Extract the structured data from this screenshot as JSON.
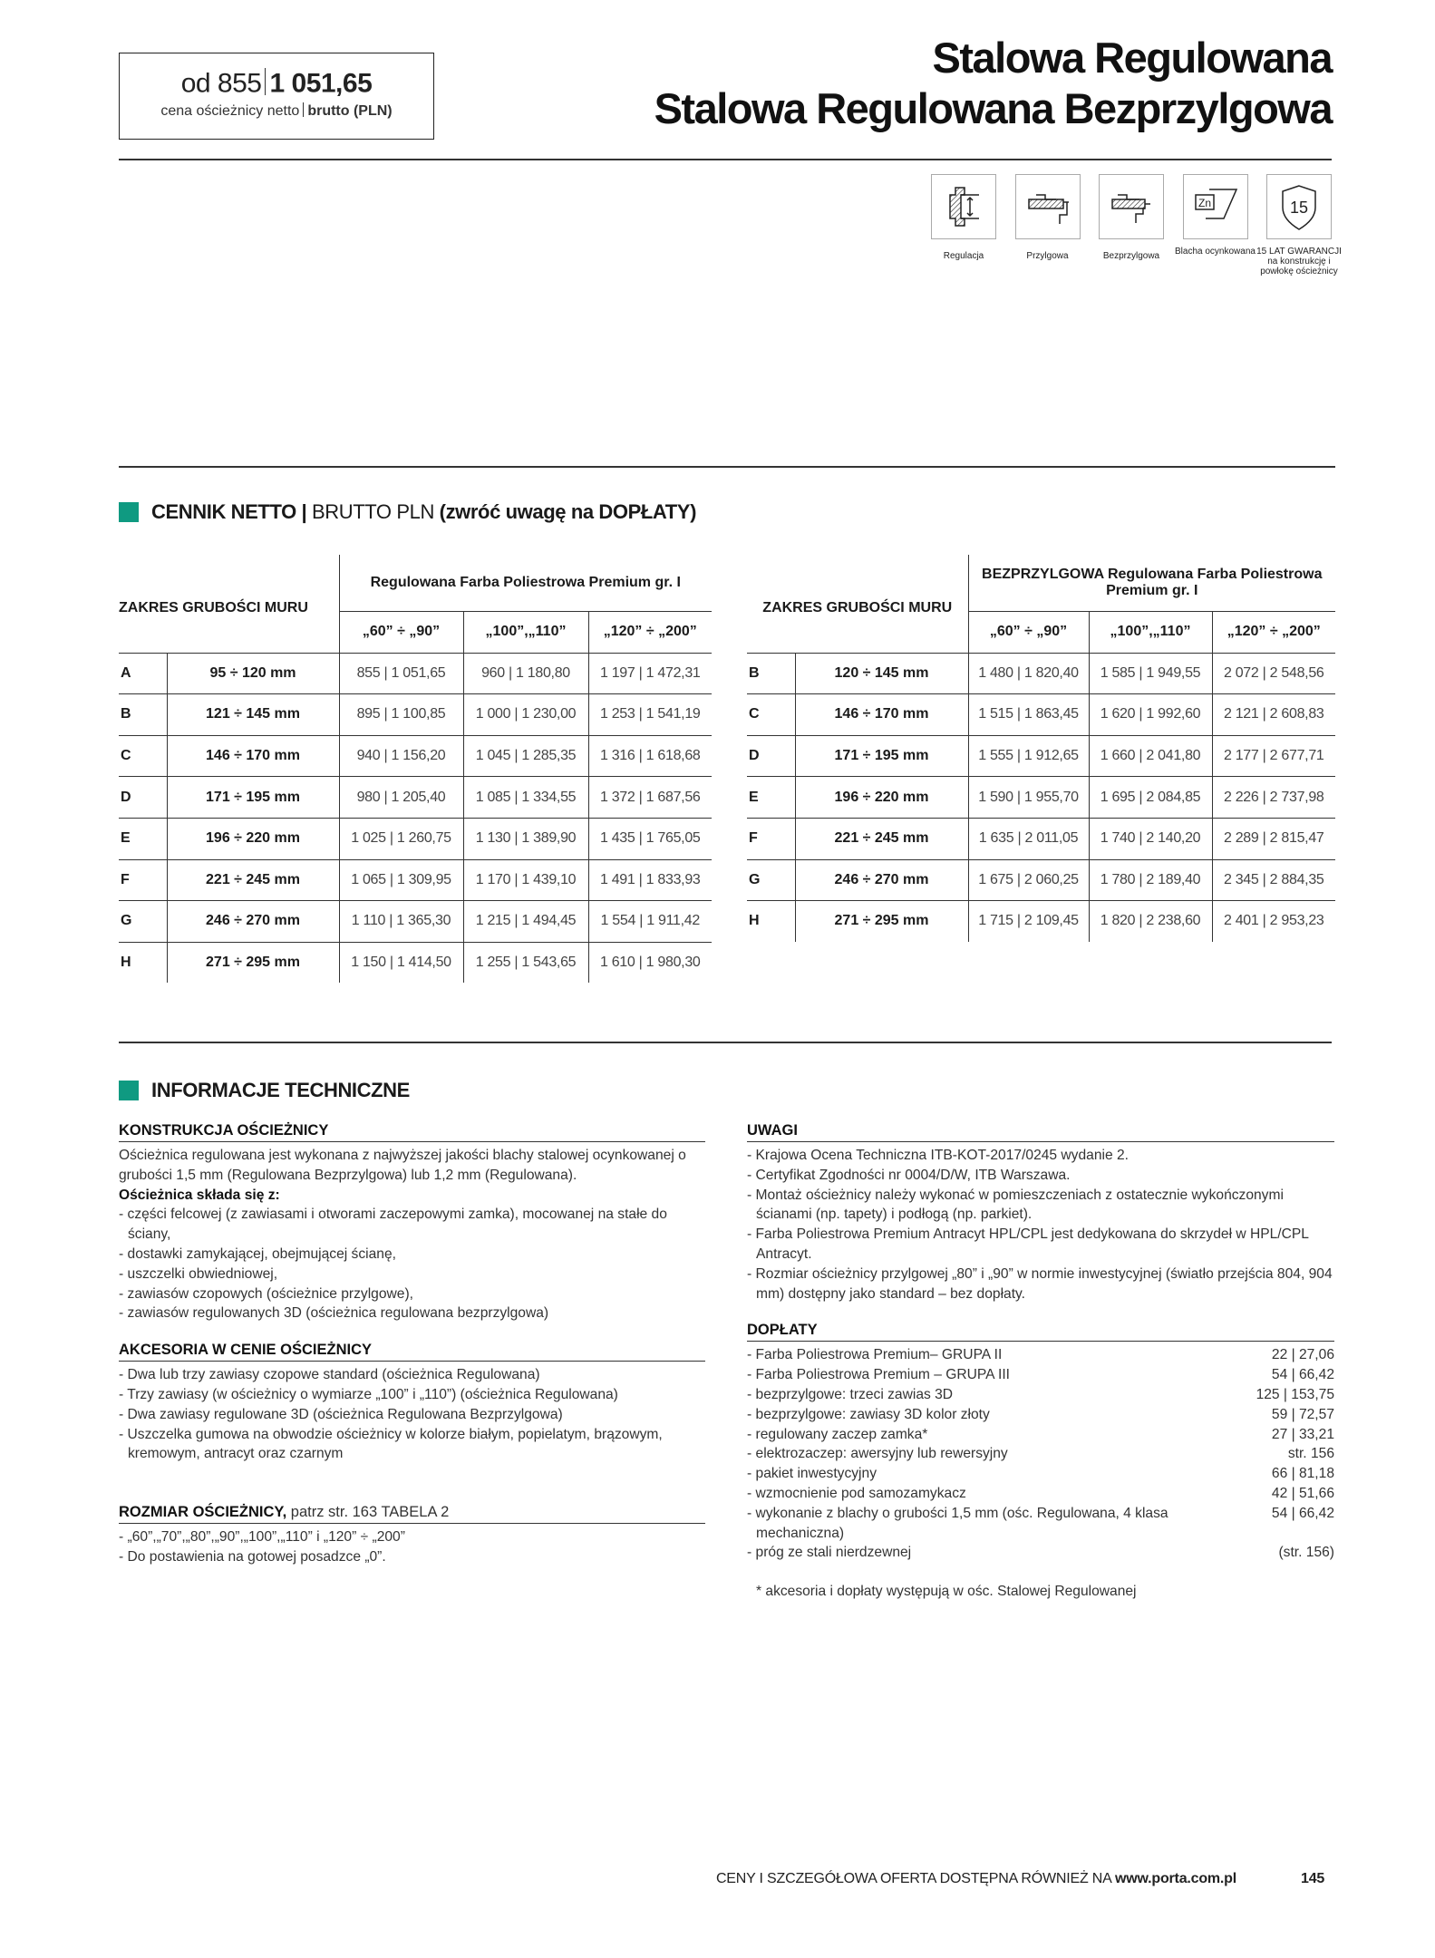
{
  "price_box": {
    "from": "od 855",
    "brutto": "1 051,65",
    "caption_net": "cena ościeżnicy netto",
    "caption_gross": "brutto (PLN)"
  },
  "title": {
    "line1": "Stalowa Regulowana",
    "line2": "Stalowa Regulowana Bezprzylgowa"
  },
  "features": [
    {
      "icon": "regulation-icon",
      "label": "Regulacja"
    },
    {
      "icon": "rebated-frame-icon",
      "label": "Przylgowa"
    },
    {
      "icon": "flush-frame-icon",
      "label": "Bezprzylgowa"
    },
    {
      "icon": "zinc-sheet-icon",
      "label": "Blacha ocynkowana"
    },
    {
      "icon": "warranty-shield-icon",
      "label": "15 LAT GWARANCJI na konstrukcję i powłokę ościeżnicy",
      "badge": "15"
    }
  ],
  "pricelist": {
    "heading_bold": "CENNIK NETTO |",
    "heading_normal": " BRUTTO PLN ",
    "heading_note": "(zwróć uwagę na DOPŁATY)",
    "accent_color": "#0f9a81",
    "tables": [
      {
        "range_header": "ZAKRES GRUBOŚCI MURU",
        "group_header": "Regulowana Farba Poliestrowa Premium gr. I",
        "columns": [
          "„60” ÷ „90”",
          "„100”,„110”",
          "„120” ÷ „200”"
        ],
        "rows": [
          {
            "code": "A",
            "range": "95 ÷ 120 mm",
            "values": [
              "855 | 1 051,65",
              "960 | 1 180,80",
              "1 197 | 1 472,31"
            ]
          },
          {
            "code": "B",
            "range": "121 ÷ 145 mm",
            "values": [
              "895 | 1 100,85",
              "1 000 | 1 230,00",
              "1 253 | 1 541,19"
            ]
          },
          {
            "code": "C",
            "range": "146 ÷ 170 mm",
            "values": [
              "940 | 1 156,20",
              "1 045 | 1 285,35",
              "1 316 | 1 618,68"
            ]
          },
          {
            "code": "D",
            "range": "171 ÷ 195 mm",
            "values": [
              "980 | 1 205,40",
              "1 085 | 1 334,55",
              "1 372 | 1 687,56"
            ]
          },
          {
            "code": "E",
            "range": "196 ÷ 220 mm",
            "values": [
              "1 025 | 1 260,75",
              "1 130 | 1 389,90",
              "1 435 | 1 765,05"
            ]
          },
          {
            "code": "F",
            "range": "221 ÷ 245 mm",
            "values": [
              "1 065 | 1 309,95",
              "1 170 | 1 439,10",
              "1 491 | 1 833,93"
            ]
          },
          {
            "code": "G",
            "range": "246 ÷ 270 mm",
            "values": [
              "1 110 | 1 365,30",
              "1 215 | 1 494,45",
              "1 554 | 1 911,42"
            ]
          },
          {
            "code": "H",
            "range": "271 ÷ 295 mm",
            "values": [
              "1 150 | 1 414,50",
              "1 255 | 1 543,65",
              "1 610 | 1 980,30"
            ]
          }
        ]
      },
      {
        "range_header": "ZAKRES GRUBOŚCI MURU",
        "group_header": "BEZPRZYLGOWA Regulowana Farba Poliestrowa Premium gr. I",
        "columns": [
          "„60” ÷ „90”",
          "„100”,„110”",
          "„120” ÷ „200”"
        ],
        "rows": [
          {
            "code": "B",
            "range": "120 ÷ 145 mm",
            "values": [
              "1 480 | 1 820,40",
              "1 585 | 1 949,55",
              "2 072 | 2 548,56"
            ]
          },
          {
            "code": "C",
            "range": "146 ÷ 170 mm",
            "values": [
              "1 515 | 1 863,45",
              "1 620 | 1 992,60",
              "2 121 | 2 608,83"
            ]
          },
          {
            "code": "D",
            "range": "171 ÷ 195 mm",
            "values": [
              "1 555 | 1 912,65",
              "1 660 | 2 041,80",
              "2 177 | 2 677,71"
            ]
          },
          {
            "code": "E",
            "range": "196 ÷ 220 mm",
            "values": [
              "1 590 | 1 955,70",
              "1 695 | 2 084,85",
              "2 226 | 2 737,98"
            ]
          },
          {
            "code": "F",
            "range": "221 ÷ 245 mm",
            "values": [
              "1 635 | 2 011,05",
              "1 740 | 2 140,20",
              "2 289 | 2 815,47"
            ]
          },
          {
            "code": "G",
            "range": "246 ÷ 270 mm",
            "values": [
              "1 675 | 2 060,25",
              "1 780 | 2 189,40",
              "2 345 | 2 884,35"
            ]
          },
          {
            "code": "H",
            "range": "271 ÷ 295 mm",
            "values": [
              "1 715 | 2 109,45",
              "1 820 | 2 238,60",
              "2 401 | 2 953,23"
            ]
          }
        ]
      }
    ]
  },
  "tech": {
    "heading": "INFORMACJE TECHNICZNE",
    "konstrukcja": {
      "title": "KONSTRUKCJA OŚCIEŻNICY",
      "intro": "Ościeżnica regulowana jest wykonana z najwyższej jakości blachy stalowej ocynkowanej o grubości 1,5 mm (Regulowana Bezprzylgowa) lub 1,2 mm (Regulowana).",
      "subtitle": "Ościeżnica składa się z:",
      "items": [
        "- części felcowej (z zawiasami i otworami zaczepowymi zamka), mocowanej na stałe do ściany,",
        "- dostawki zamykającej, obejmującej ścianę,",
        "- uszczelki obwiedniowej,",
        "- zawiasów czopowych (ościeżnice przylgowe),",
        "- zawiasów regulowanych 3D (ościeżnica regulowana bezprzylgowa)"
      ]
    },
    "akcesoria": {
      "title": "AKCESORIA W CENIE OŚCIEŻNICY",
      "items": [
        "- Dwa lub trzy zawiasy czopowe standard (ościeżnica Regulowana)",
        "- Trzy zawiasy (w ościeżnicy o wymiarze „100” i „110”) (ościeżnica Regulowana)",
        "- Dwa zawiasy regulowane 3D (ościeżnica Regulowana Bezprzylgowa)",
        "- Uszczelka gumowa na obwodzie ościeżnicy w kolorze białym, popielatym, brązowym, kremowym, antracyt oraz czarnym"
      ]
    },
    "rozmiar": {
      "title": "ROZMIAR OŚCIEŻNICY,",
      "title_note": " patrz str. 163 TABELA 2",
      "items": [
        "- „60”,„70”,„80”,„90”,„100”,„110” i „120” ÷ „200”",
        "- Do postawienia na gotowej posadzce „0”."
      ]
    },
    "uwagi": {
      "title": "UWAGI",
      "items": [
        "- Krajowa Ocena Techniczna ITB-KOT-2017/0245 wydanie 2.",
        "- Certyfikat Zgodności nr 0004/D/W, ITB Warszawa.",
        "- Montaż ościeżnicy należy wykonać w pomieszczeniach z ostatecznie wykończonymi ścianami (np. tapety) i podłogą (np. parkiet).",
        "- Farba Poliestrowa Premium Antracyt HPL/CPL jest dedykowana do skrzydeł w HPL/CPL Antracyt.",
        "- Rozmiar ościeżnicy przylgowej „80” i „90” w normie inwestycyjnej (światło przejścia 804, 904 mm) dostępny jako standard – bez dopłaty."
      ]
    },
    "doplaty": {
      "title": "DOPŁATY",
      "items": [
        {
          "name": "- Farba Poliestrowa Premium– GRUPA II",
          "price": "22 | 27,06"
        },
        {
          "name": "- Farba Poliestrowa Premium – GRUPA III",
          "price": "54 | 66,42"
        },
        {
          "name": "- bezprzylgowe: trzeci zawias 3D",
          "price": "125 | 153,75"
        },
        {
          "name": "- bezprzylgowe: zawiasy 3D kolor złoty",
          "price": "59 | 72,57"
        },
        {
          "name": "- regulowany zaczep zamka*",
          "price": "27 | 33,21"
        },
        {
          "name": "- elektrozaczep: awersyjny lub rewersyjny",
          "price": "str. 156"
        },
        {
          "name": "- pakiet inwestycyjny",
          "price": "66 | 81,18"
        },
        {
          "name": "- wzmocnienie pod samozamykacz",
          "price": "42 | 51,66"
        },
        {
          "name": "- wykonanie z blachy o grubości 1,5 mm (ośc. Regulowana, 4 klasa mechaniczna)",
          "price": "54 | 66,42"
        },
        {
          "name": "- próg ze stali nierdzewnej",
          "price": "(str. 156)"
        }
      ],
      "footnote": "* akcesoria i dopłaty występują w ośc. Stalowej Regulowanej"
    }
  },
  "footer": {
    "text": "CENY I SZCZEGÓŁOWA OFERTA DOSTĘPNA RÓWNIEŻ NA ",
    "url": "www.porta.com.pl",
    "page": "145"
  }
}
